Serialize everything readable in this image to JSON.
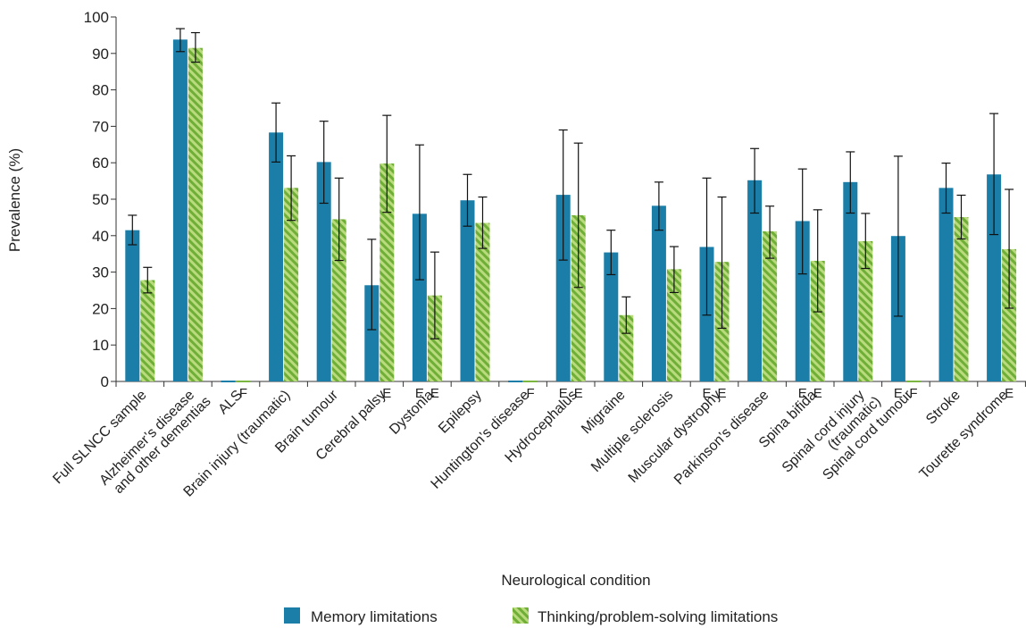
{
  "chart_data": {
    "type": "bar",
    "title": "",
    "xlabel": "Neurological condition",
    "ylabel": "Prevalence (%)",
    "ylim": [
      0,
      100
    ],
    "yticks": [
      0,
      10,
      20,
      30,
      40,
      50,
      60,
      70,
      80,
      90,
      100
    ],
    "grid": false,
    "legend_position": "bottom",
    "categories": [
      [
        "Full SLNCC sample"
      ],
      [
        "Alzheimer’s disease",
        "and other dementias"
      ],
      [
        "ALS"
      ],
      [
        "Brain injury (traumatic)"
      ],
      [
        "Brain tumour"
      ],
      [
        "Cerebral palsy"
      ],
      [
        "Dystonia"
      ],
      [
        "Epilepsy"
      ],
      [
        "Huntington’s disease"
      ],
      [
        "Hydrocephalus"
      ],
      [
        "Migraine"
      ],
      [
        "Multiple sclerosis"
      ],
      [
        "Muscular dystrophy"
      ],
      [
        "Parkinson’s disease"
      ],
      [
        "Spina bifida"
      ],
      [
        "Spinal cord injury",
        "(traumatic)"
      ],
      [
        "Spinal cord tumour"
      ],
      [
        "Stroke"
      ],
      [
        "Tourette syndrome"
      ]
    ],
    "series": [
      {
        "name": "Memory limitations",
        "color": "#1a7ea8",
        "pattern": "solid",
        "values": [
          41.5,
          93.8,
          0,
          68.3,
          60.2,
          26.4,
          46.0,
          49.7,
          0,
          51.2,
          35.4,
          48.2,
          36.9,
          55.2,
          44.0,
          54.7,
          39.9,
          53.1,
          56.8
        ],
        "err_low": [
          37.5,
          90.5,
          null,
          60.2,
          48.9,
          14.2,
          27.9,
          42.6,
          null,
          33.3,
          29.3,
          41.5,
          18.2,
          46.2,
          29.5,
          46.2,
          17.9,
          46.2,
          40.3
        ],
        "err_high": [
          45.6,
          96.8,
          null,
          76.4,
          71.4,
          39.0,
          64.9,
          56.8,
          null,
          69.0,
          41.5,
          54.7,
          55.8,
          63.9,
          58.3,
          63.0,
          61.8,
          59.9,
          73.5
        ],
        "flags": [
          "",
          "",
          "",
          "",
          "",
          "",
          "E",
          "",
          "",
          "E",
          "",
          "",
          "E",
          "",
          "E",
          "",
          "E",
          "",
          ""
        ]
      },
      {
        "name": "Thinking/problem-solving limitations",
        "color": "#7ab640",
        "pattern": "hatched",
        "values": [
          27.8,
          91.5,
          0,
          53.1,
          44.5,
          59.8,
          23.6,
          43.5,
          0,
          45.6,
          18.2,
          30.8,
          32.8,
          41.2,
          33.1,
          38.5,
          0,
          45.1,
          36.3
        ],
        "err_low": [
          24.3,
          87.6,
          null,
          44.2,
          33.2,
          46.4,
          11.7,
          36.5,
          null,
          25.8,
          13.2,
          24.4,
          14.6,
          33.8,
          19.1,
          31.0,
          null,
          39.1,
          20.1
        ],
        "err_high": [
          31.3,
          95.7,
          null,
          61.9,
          55.8,
          73.0,
          35.5,
          50.6,
          null,
          65.4,
          23.2,
          37.0,
          50.6,
          48.1,
          47.1,
          46.1,
          null,
          51.1,
          52.7
        ],
        "flags": [
          "",
          "",
          "F",
          "",
          "",
          "E",
          "E",
          "",
          "F",
          "E",
          "",
          "",
          "E",
          "",
          "E",
          "",
          "F",
          "",
          "E"
        ]
      }
    ]
  }
}
